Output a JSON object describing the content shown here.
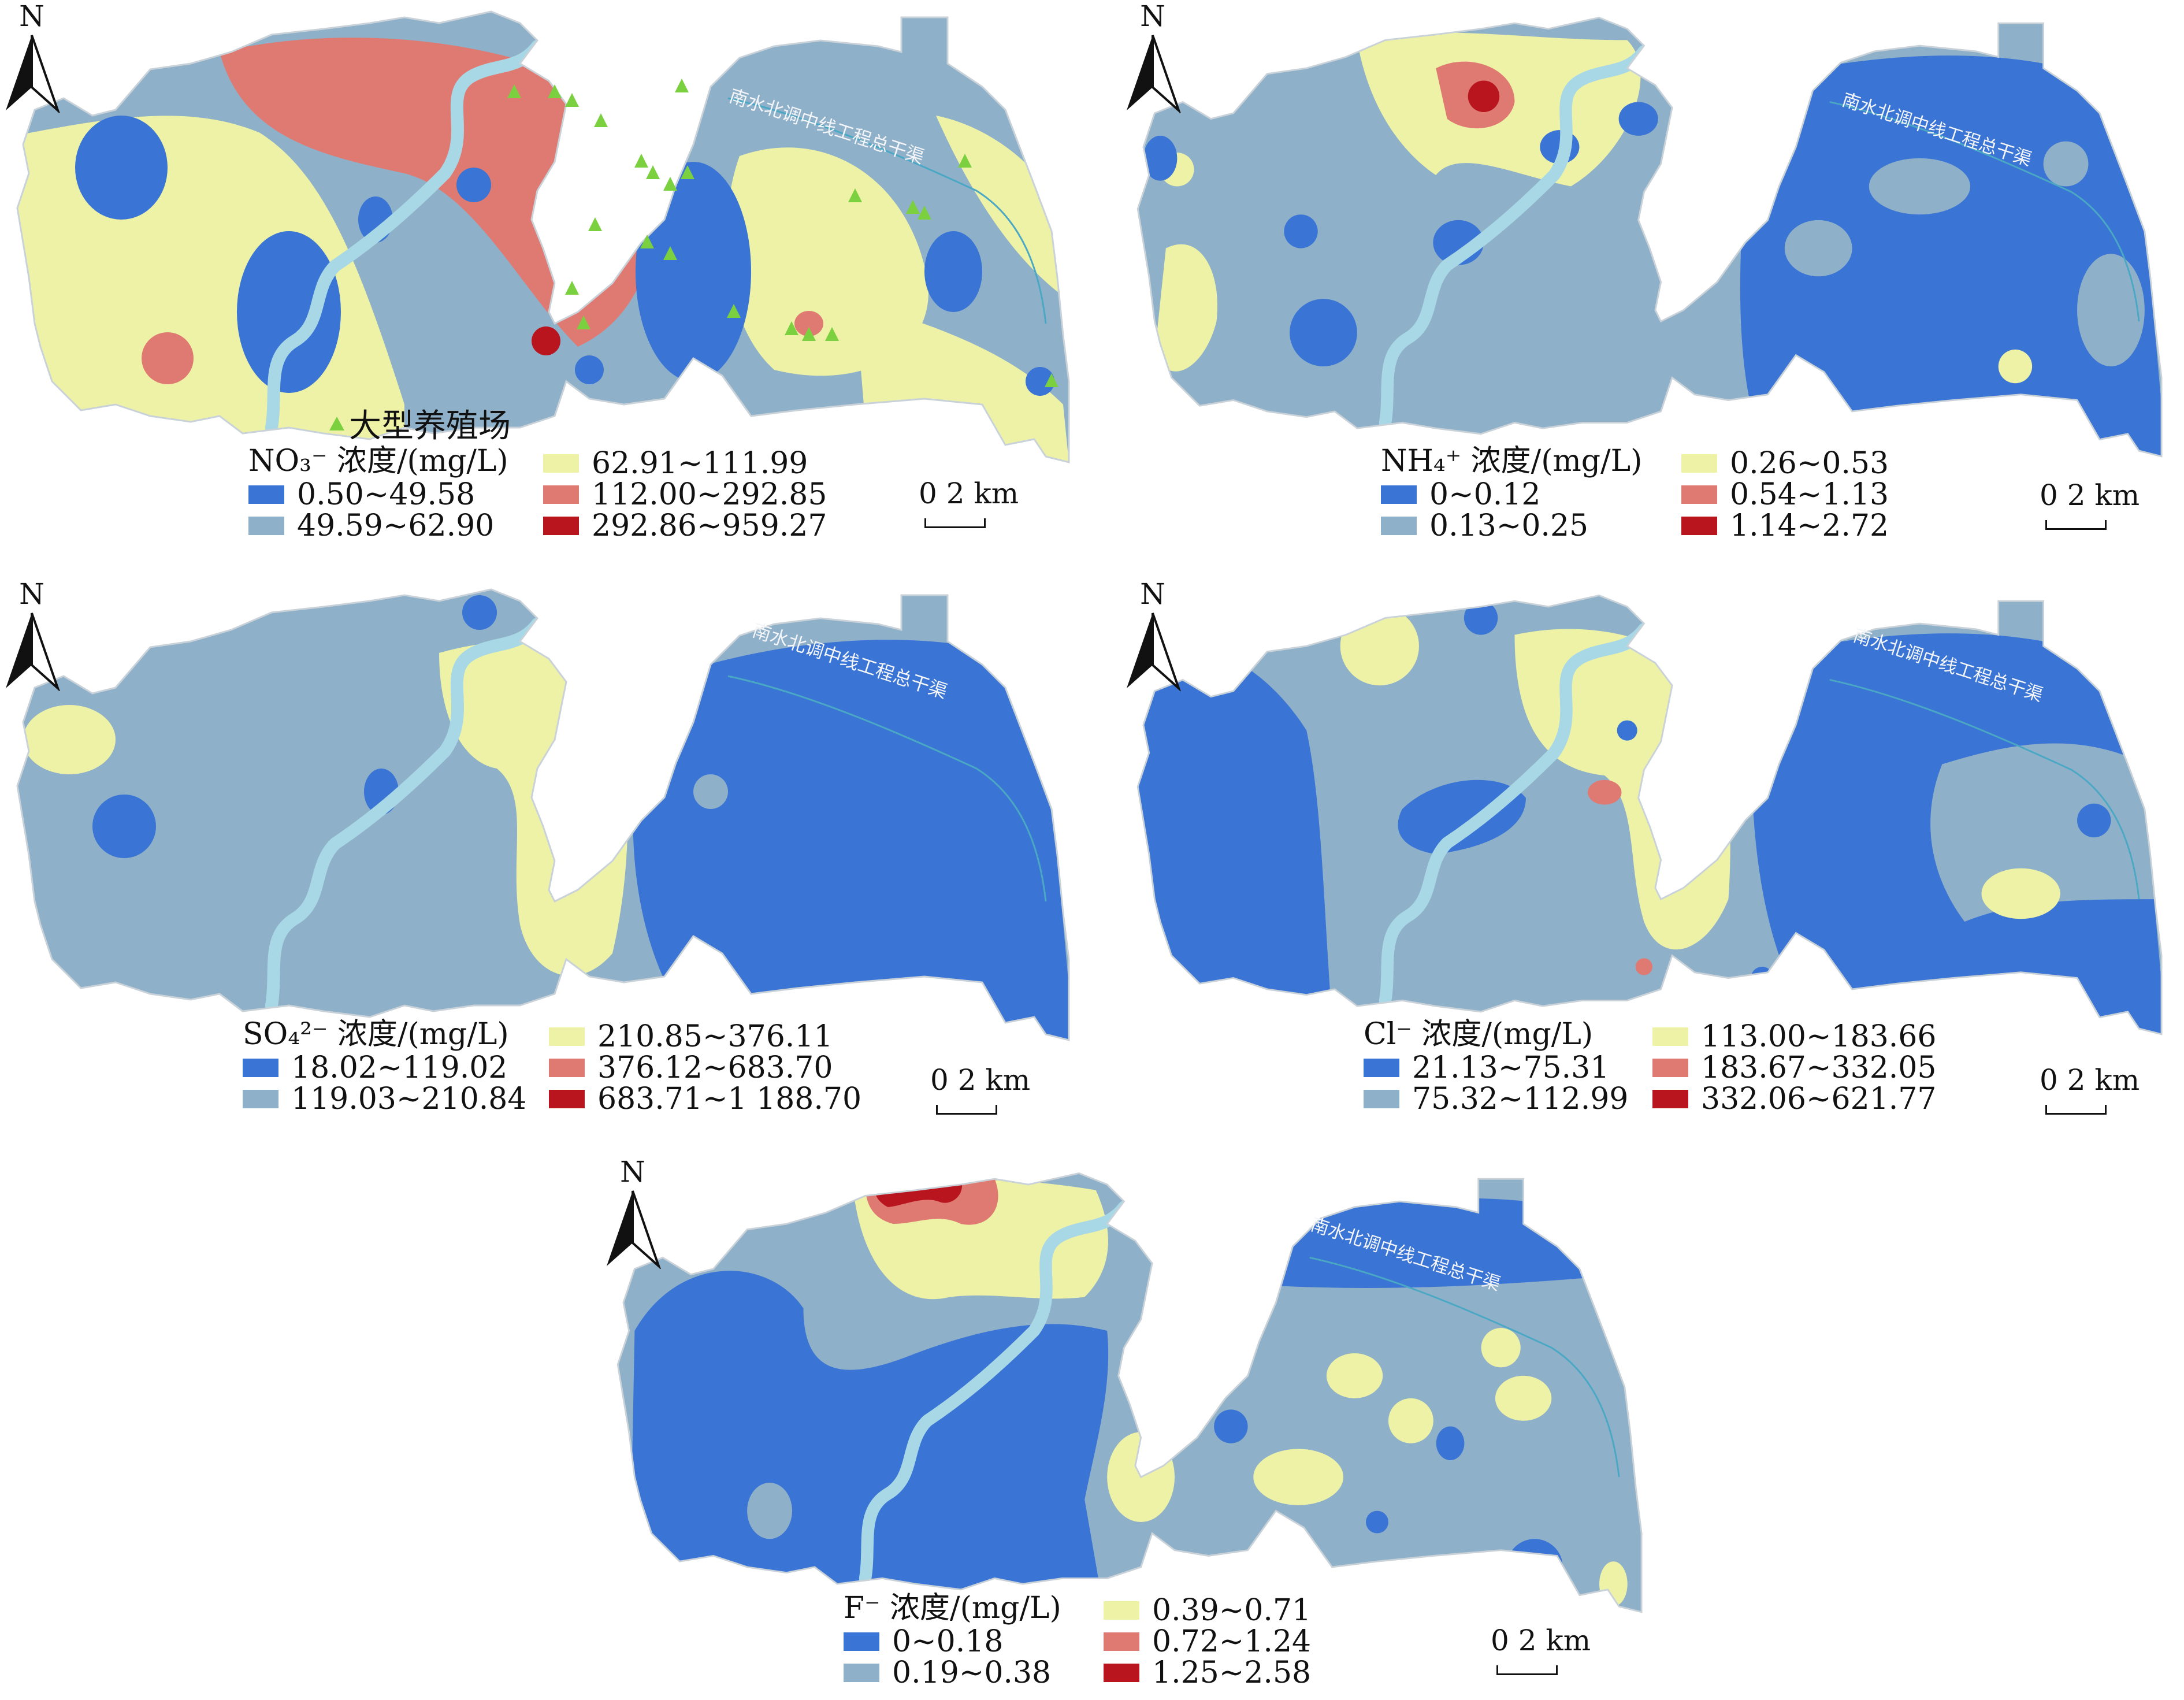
{
  "colors": {
    "c1": "#3a74d4",
    "c2": "#8fb0c9",
    "c3": "#eef2a6",
    "c4": "#df7a72",
    "c5": "#b8151f",
    "river": "#a8d8e6",
    "farm": "#7ad03f"
  },
  "north_letter": "N",
  "scale_text": "0 2 km",
  "canal_label": "南水北调中线工程总干渠",
  "farm_label": "大型养殖场",
  "panels": [
    {
      "ion": "NO3-",
      "title": "NO₃⁻ 浓度/(mg/L)",
      "classes": [
        "0.50~49.58",
        "49.59~62.90",
        "62.91~111.99",
        "112.00~292.85",
        "292.86~959.27"
      ]
    },
    {
      "ion": "NH4+",
      "title": "NH₄⁺ 浓度/(mg/L)",
      "classes": [
        "0~0.12",
        "0.13~0.25",
        "0.26~0.53",
        "0.54~1.13",
        "1.14~2.72"
      ]
    },
    {
      "ion": "SO42-",
      "title": "SO₄²⁻ 浓度/(mg/L)",
      "classes": [
        "18.02~119.02",
        "119.03~210.84",
        "210.85~376.11",
        "376.12~683.70",
        "683.71~1 188.70"
      ]
    },
    {
      "ion": "Cl-",
      "title": "Cl⁻ 浓度/(mg/L)",
      "classes": [
        "21.13~75.31",
        "75.32~112.99",
        "113.00~183.66",
        "183.67~332.05",
        "332.06~621.77"
      ]
    },
    {
      "ion": "F-",
      "title": "F⁻ 浓度/(mg/L)",
      "classes": [
        "0~0.18",
        "0.19~0.38",
        "0.39~0.71",
        "0.72~1.24",
        "1.25~2.58"
      ]
    }
  ]
}
